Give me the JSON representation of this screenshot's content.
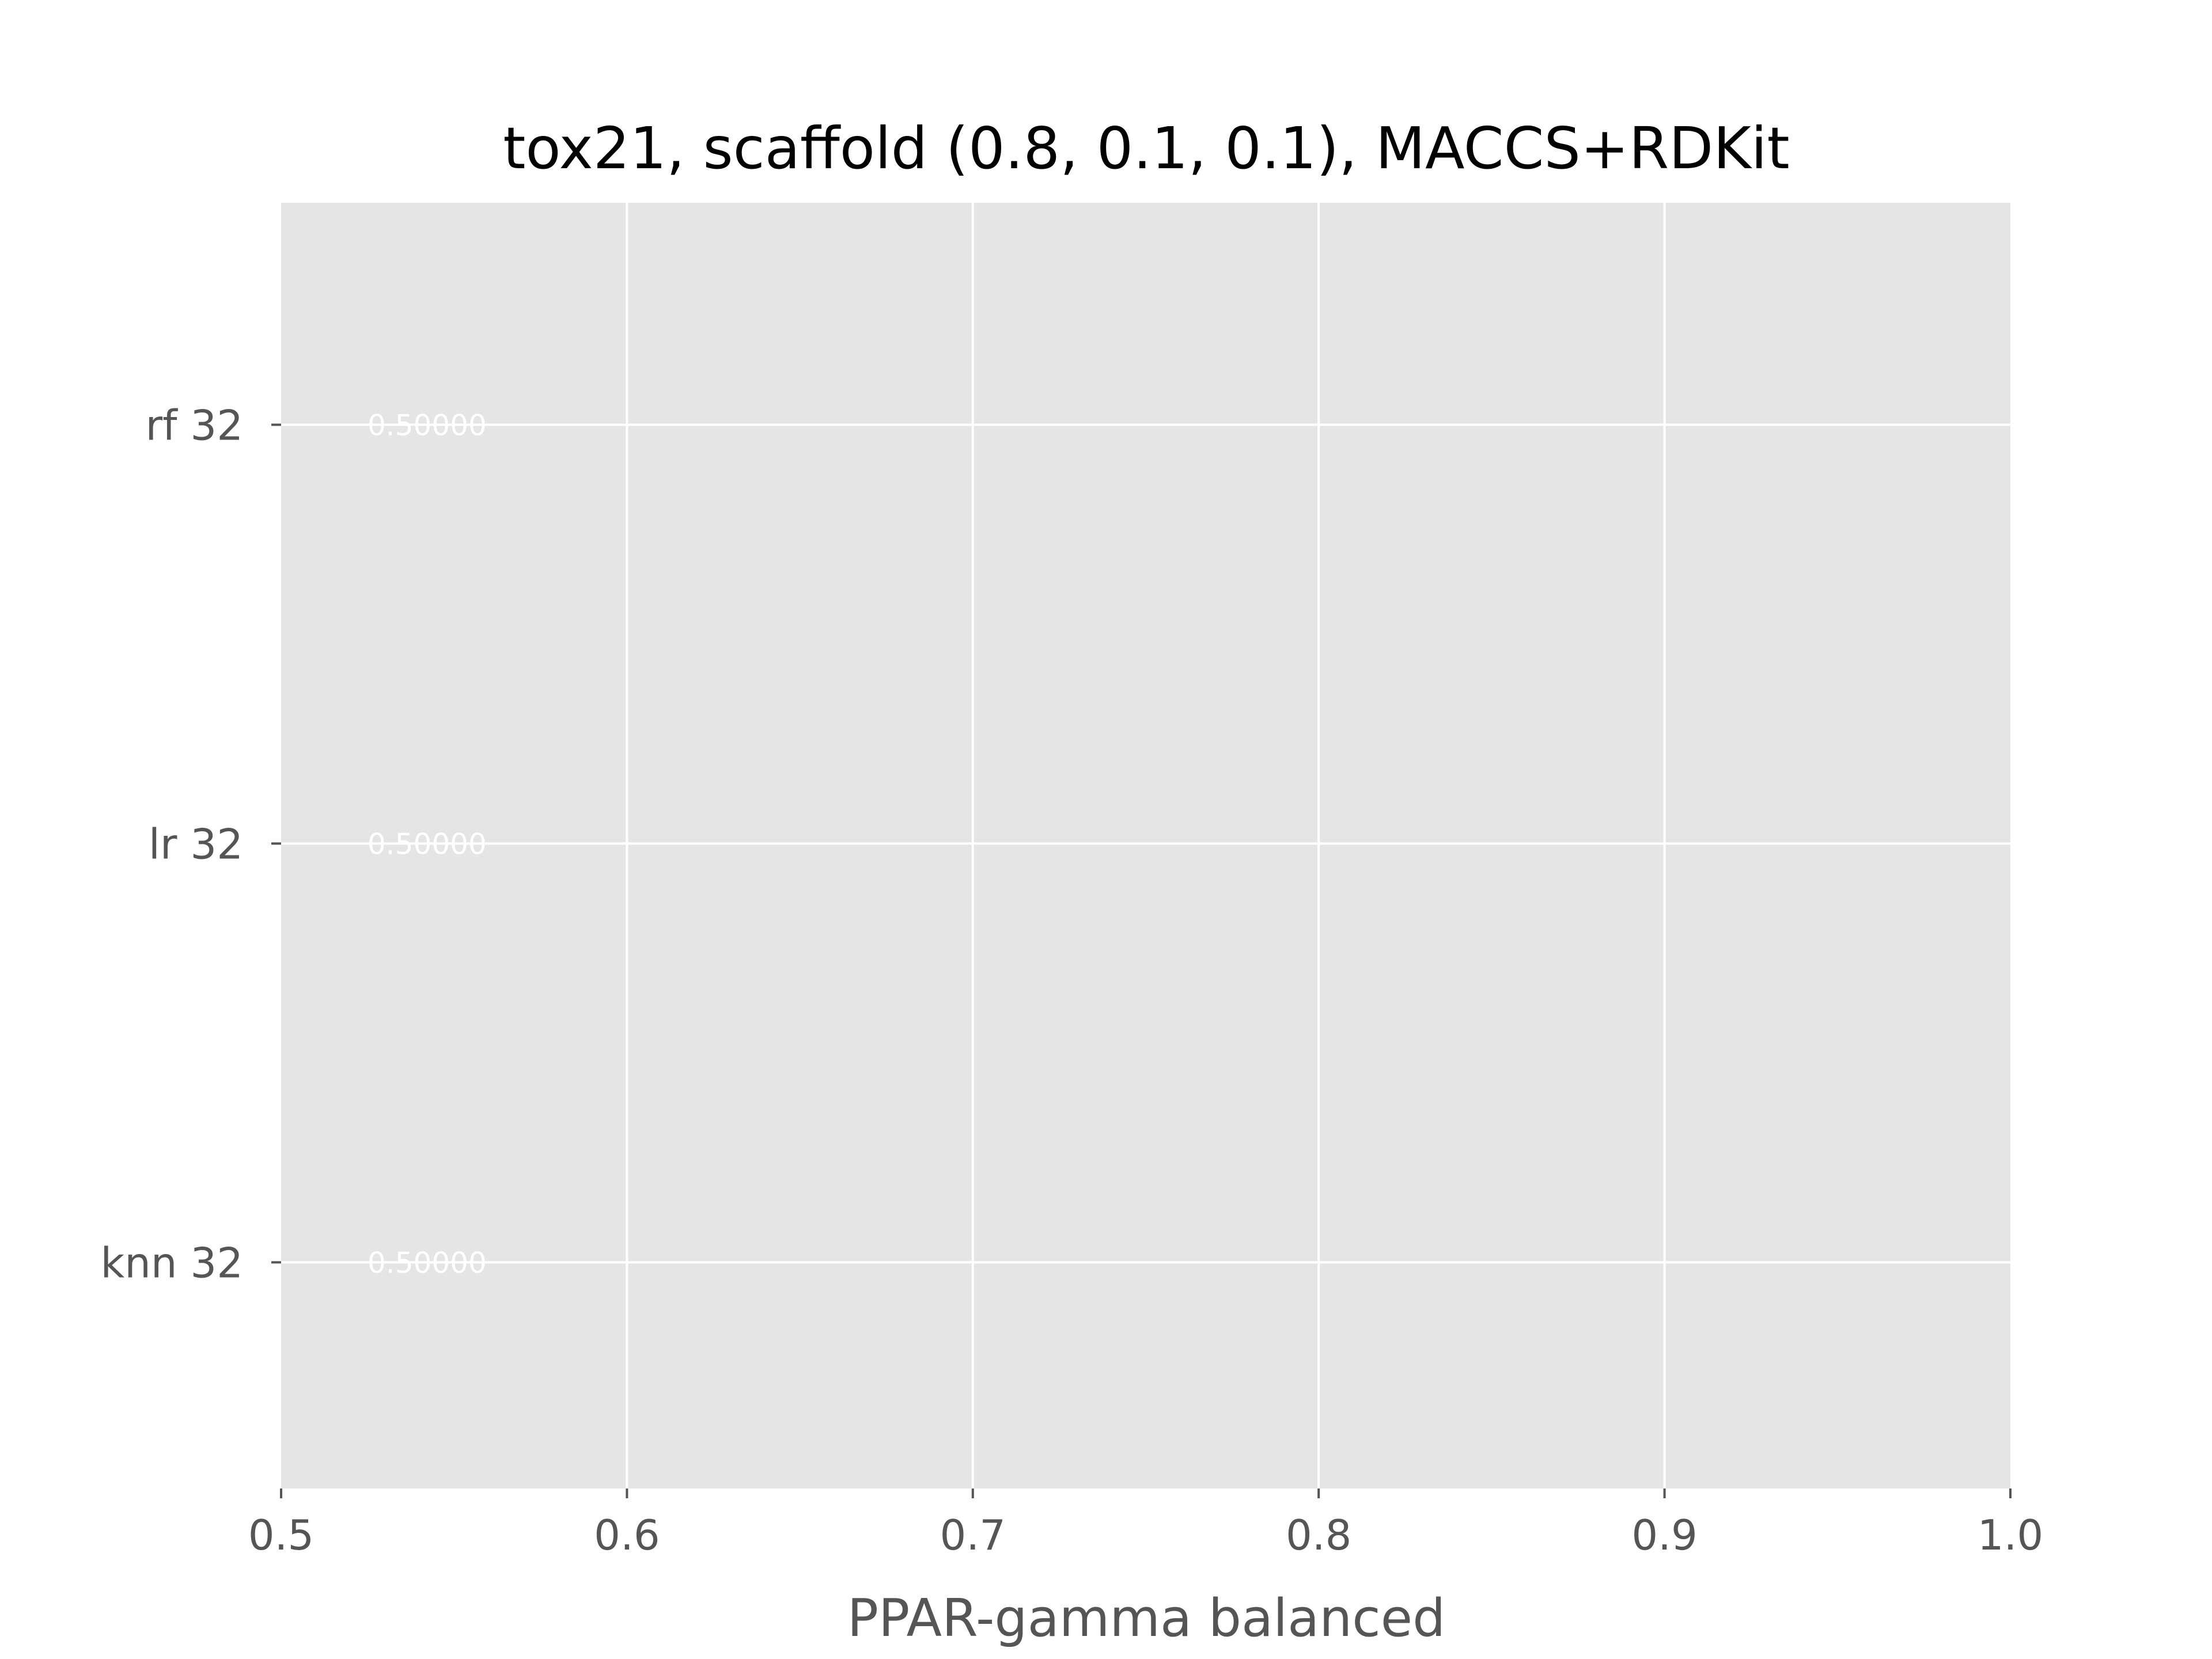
{
  "chart_data": {
    "type": "bar",
    "orientation": "horizontal",
    "title": "tox21, scaffold (0.8, 0.1, 0.1), MACCS+RDKit",
    "xlabel": "PPAR-gamma balanced",
    "ylabel": "",
    "xlim": [
      0.5,
      1.0
    ],
    "xticks": [
      0.5,
      0.6,
      0.7,
      0.8,
      0.9,
      1.0
    ],
    "xtick_labels": [
      "0.5",
      "0.6",
      "0.7",
      "0.8",
      "0.9",
      "1.0"
    ],
    "categories": [
      "rf 32",
      "lr 32",
      "knn 32"
    ],
    "values": [
      0.5,
      0.5,
      0.5
    ],
    "value_labels": [
      "0.50000",
      "0.50000",
      "0.50000"
    ],
    "grid": true,
    "style": "ggplot",
    "colors": {
      "plot_background": "#e5e5e5",
      "grid": "#ffffff",
      "tick_text": "#555555",
      "title_text": "#000000",
      "data_label": "#ffffff"
    }
  }
}
